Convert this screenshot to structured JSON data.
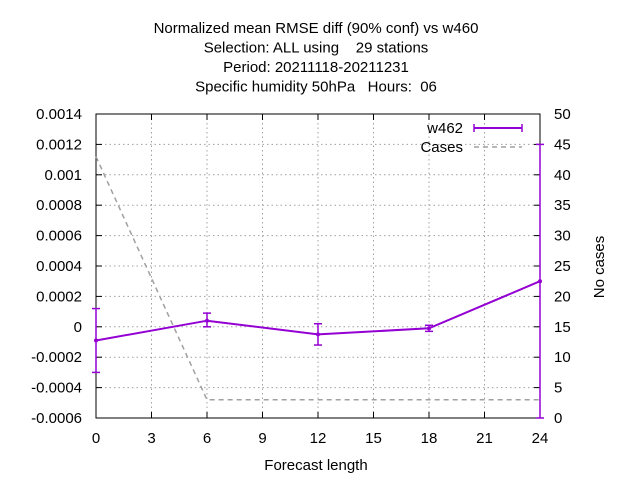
{
  "chart_data": {
    "type": "line",
    "title_lines": [
      "Normalized mean RMSE diff (90% conf) vs w460",
      "Selection: ALL using    29 stations",
      "Period: 20211118-20211231",
      "Specific humidity 50hPa   Hours:  06"
    ],
    "xlabel": "Forecast length",
    "ylabel": "",
    "y2label": "No cases",
    "xlim": [
      0,
      24
    ],
    "ylim": [
      -0.0006,
      0.0014
    ],
    "y2lim": [
      0,
      50
    ],
    "xticks": [
      0,
      3,
      6,
      9,
      12,
      15,
      18,
      21,
      24
    ],
    "yticks": [
      -0.0006,
      -0.0004,
      -0.0002,
      0,
      0.0002,
      0.0004,
      0.0006,
      0.0008,
      0.001,
      0.0012,
      0.0014
    ],
    "ytick_labels": [
      "-0.0006",
      "-0.0004",
      "-0.0002",
      "0",
      "0.0002",
      "0.0004",
      "0.0006",
      "0.0008",
      "0.001",
      "0.0012",
      "0.0014"
    ],
    "y2ticks": [
      0,
      5,
      10,
      15,
      20,
      25,
      30,
      35,
      40,
      45,
      50
    ],
    "grid": true,
    "legend_position": "top-right",
    "series": [
      {
        "name": "w462",
        "color": "#9400d3",
        "style": "solid-errorbars",
        "x": [
          0,
          6,
          12,
          18,
          24
        ],
        "y": [
          -9e-05,
          4e-05,
          -5e-05,
          -1e-05,
          0.0003
        ],
        "err_low": [
          -0.0003,
          0.0,
          -0.00012,
          -3e-05,
          -0.0006
        ],
        "err_high": [
          0.00012,
          9e-05,
          2e-05,
          1e-05,
          0.0012
        ]
      },
      {
        "name": "Cases",
        "color": "#a0a0a0",
        "style": "dashed",
        "axis": "y2",
        "x": [
          0,
          6,
          12,
          18,
          24
        ],
        "y": [
          43,
          3,
          3,
          3,
          3
        ]
      }
    ]
  }
}
